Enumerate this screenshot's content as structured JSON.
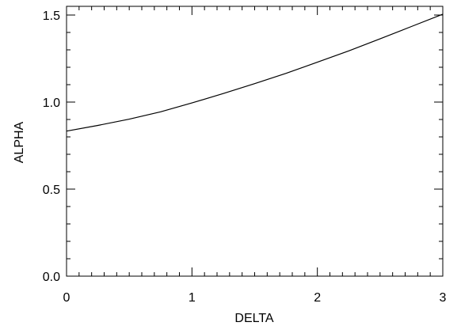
{
  "chart_data": {
    "type": "line",
    "title": "",
    "xlabel": "DELTA",
    "ylabel": "ALPHA",
    "xlim": [
      0,
      3
    ],
    "ylim": [
      0,
      1.55
    ],
    "grid": false,
    "legend": "none",
    "x_ticks": [
      {
        "value": 0,
        "label": "0"
      },
      {
        "value": 1,
        "label": "1"
      },
      {
        "value": 2,
        "label": "2"
      },
      {
        "value": 3,
        "label": "3"
      }
    ],
    "y_ticks": [
      {
        "value": 0.0,
        "label": "0.0"
      },
      {
        "value": 0.5,
        "label": "0.5"
      },
      {
        "value": 1.0,
        "label": "1.0"
      },
      {
        "value": 1.5,
        "label": "1.5"
      }
    ],
    "series": [
      {
        "color": "#000000",
        "x": [
          0,
          0.25,
          0.5,
          0.75,
          1.0,
          1.25,
          1.5,
          1.75,
          2.0,
          2.25,
          2.5,
          2.75,
          3.0
        ],
        "y": [
          0.833,
          0.866,
          0.902,
          0.944,
          0.995,
          1.049,
          1.106,
          1.165,
          1.229,
          1.294,
          1.363,
          1.434,
          1.505
        ]
      }
    ]
  }
}
